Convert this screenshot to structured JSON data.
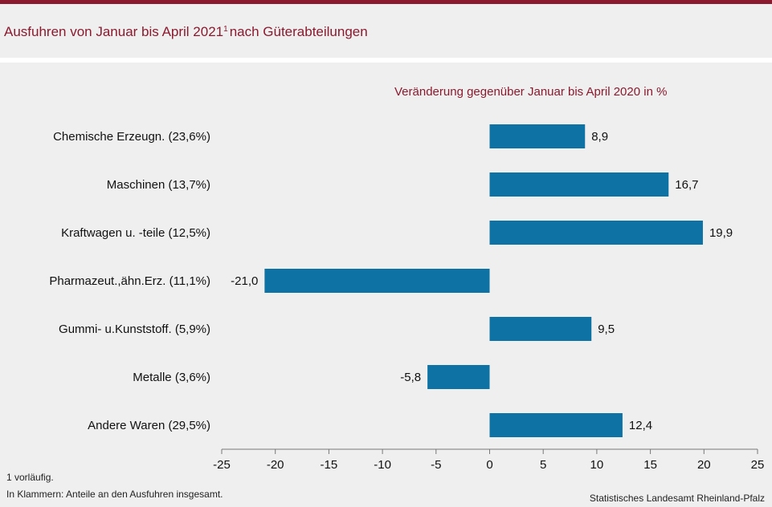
{
  "header": {
    "title": "Ausfuhren von Januar bis April 2021",
    "title_footnote_mark": "1",
    "title_suffix": "nach Güterabteilungen"
  },
  "footnotes": {
    "note1": "1 vorläufig.",
    "note2": "In Klammern: Anteile an den Ausfuhren insgesamt.",
    "source": "Statistisches Landesamt Rheinland-Pfalz"
  },
  "colors": {
    "accent": "#8b1a2f",
    "bar": "#0e72a5",
    "background": "#eeefee"
  },
  "chart_data": {
    "type": "bar",
    "orientation": "horizontal",
    "title": "Veränderung gegenüber Januar bis April 2020 in %",
    "categories": [
      "Chemische Erzeugn. (23,6%)",
      "Maschinen (13,7%)",
      "Kraftwagen u. -teile (12,5%)",
      "Pharmazeut.,ähn.Erz. (11,1%)",
      "Gummi- u.Kunststoff. (5,9%)",
      "Metalle (3,6%)",
      "Andere Waren (29,5%)"
    ],
    "values": [
      8.9,
      16.7,
      19.9,
      -21.0,
      9.5,
      -5.8,
      12.4
    ],
    "value_labels": [
      "8,9",
      "16,7",
      "19,9",
      "-21,0",
      "9,5",
      "-5,8",
      "12,4"
    ],
    "xlim": [
      -25,
      25
    ],
    "xticks": [
      -25,
      -20,
      -15,
      -10,
      -5,
      0,
      5,
      10,
      15,
      20,
      25
    ],
    "grid": false
  }
}
